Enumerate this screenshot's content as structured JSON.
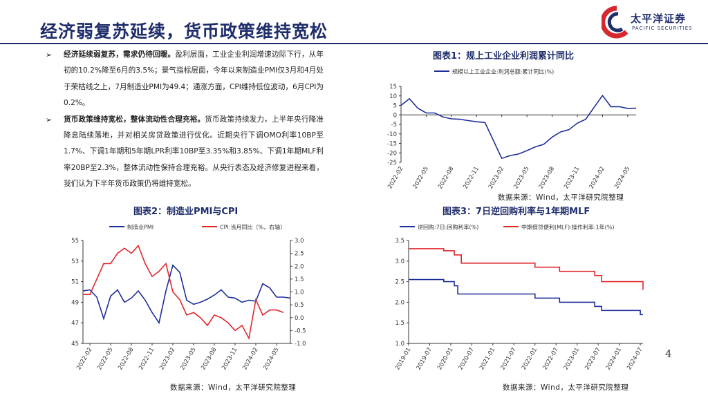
{
  "page": {
    "title": "经济弱复苏延续，货币政策维持宽松",
    "page_number": "4"
  },
  "logo": {
    "name_cn": "太平洋证券",
    "name_en": "PACIFIC SECURITIES",
    "colors": {
      "navy": "#1f2d6b",
      "red": "#d7282f"
    }
  },
  "bullets": [
    {
      "marker": "➢",
      "heading": "经济延续弱复苏，需求仍待回暖。",
      "body": "盈利层面，工业企业利润增速边际下行，从年初的10.2%降至6月的3.5%；景气指标层面，今年以来制造业PMI仅3月和4月处于荣枯线之上，7月制造业PMI为49.4；通涨方面，CPI维持低位波动，6月CPI为0.2%。"
    },
    {
      "marker": "➢",
      "heading": "货币政策维持宽松，整体流动性合理充裕。",
      "body": "货币政策持续发力，上半年央行降准降息陆续落地，并对相关房贷政策进行优化。近期央行下调OMO利率10BP至1.7%、下调1年期和5年期LPR利率10BP至3.35%和3.85%、下调1年期MLF利率20BP至2.3%，整体流动性保持合理充裕。从央行表态及经济修复进程来看，我们认为下半年货币政策仍将维持宽松。"
    }
  ],
  "charts": {
    "c1": {
      "title": "图表1：规上工业企业利润累计同比",
      "source": "数据来源：Wind，太平洋研究院整理"
    },
    "c2": {
      "title": "图表2：制造业PMI与CPI",
      "source": "数据来源：Wind，太平洋研究院整理"
    },
    "c3": {
      "title": "图表3：7日逆回购利率与1年期MLF",
      "source": "数据来源：Wind，太平洋研究院整理"
    }
  },
  "chart_data": [
    {
      "type": "line",
      "title": "图表1：规上工业企业利润累计同比",
      "x_ticks": [
        "2022-02",
        "2022-05",
        "2022-08",
        "2022-11",
        "2023-02",
        "2023-05",
        "2023-08",
        "2023-11",
        "2024-02",
        "2024-05"
      ],
      "ylim": [
        -25,
        15
      ],
      "y_ticks": [
        -25,
        -20,
        -15,
        -10,
        -5,
        0,
        5,
        10,
        15
      ],
      "legend_position": "top",
      "series": [
        {
          "name": "规模以上工业企业:利润总额:累计同比(%)",
          "color": "#1f2d9b",
          "x": [
            "2022-02",
            "2022-03",
            "2022-04",
            "2022-05",
            "2022-06",
            "2022-07",
            "2022-08",
            "2022-09",
            "2022-10",
            "2022-11",
            "2022-12",
            "2023-02",
            "2023-03",
            "2023-04",
            "2023-05",
            "2023-06",
            "2023-07",
            "2023-08",
            "2023-09",
            "2023-10",
            "2023-11",
            "2023-12",
            "2024-02",
            "2024-03",
            "2024-04",
            "2024-05",
            "2024-06"
          ],
          "values": [
            5.0,
            8.5,
            3.5,
            1.0,
            1.0,
            -1.1,
            -2.1,
            -2.3,
            -3.0,
            -3.6,
            -4.0,
            -22.9,
            -21.4,
            -20.6,
            -18.8,
            -16.8,
            -15.5,
            -11.7,
            -9.0,
            -7.8,
            -4.4,
            -2.3,
            10.2,
            4.3,
            4.3,
            3.4,
            3.5
          ]
        }
      ]
    },
    {
      "type": "line",
      "title": "图表2：制造业PMI与CPI",
      "x_ticks": [
        "2022-02",
        "2022-05",
        "2022-08",
        "2022-11",
        "2023-02",
        "2023-05",
        "2023-08",
        "2023-11",
        "2024-02",
        "2024-05"
      ],
      "ylim_left": [
        45,
        55
      ],
      "y_ticks_left": [
        45,
        47,
        49,
        51,
        53,
        55
      ],
      "ylim_right": [
        -1.0,
        3.0
      ],
      "y_ticks_right": [
        "-1.0",
        "-0.5",
        "0.0",
        "0.5",
        "1.0",
        "1.5",
        "2.0",
        "2.5",
        "3.0"
      ],
      "legend_position": "top",
      "series": [
        {
          "name": "制造业PMI",
          "axis": "left",
          "color": "#1f2d9b",
          "x": [
            "2022-01",
            "2022-02",
            "2022-03",
            "2022-04",
            "2022-05",
            "2022-06",
            "2022-07",
            "2022-08",
            "2022-09",
            "2022-10",
            "2022-11",
            "2022-12",
            "2023-01",
            "2023-02",
            "2023-03",
            "2023-04",
            "2023-05",
            "2023-06",
            "2023-07",
            "2023-08",
            "2023-09",
            "2023-10",
            "2023-11",
            "2023-12",
            "2024-01",
            "2024-02",
            "2024-03",
            "2024-04",
            "2024-05",
            "2024-06",
            "2024-07"
          ],
          "values": [
            50.1,
            50.2,
            49.5,
            47.4,
            49.6,
            50.2,
            49.0,
            49.4,
            50.1,
            49.2,
            48.0,
            47.0,
            50.1,
            52.6,
            51.9,
            49.2,
            48.8,
            49.0,
            49.3,
            49.7,
            50.2,
            49.5,
            49.4,
            49.0,
            49.2,
            49.1,
            50.8,
            50.4,
            49.5,
            49.5,
            49.4
          ]
        },
        {
          "name": "CPI:当月同比（%，右轴）",
          "axis": "right",
          "color": "#e1262c",
          "x": [
            "2022-01",
            "2022-02",
            "2022-03",
            "2022-04",
            "2022-05",
            "2022-06",
            "2022-07",
            "2022-08",
            "2022-09",
            "2022-10",
            "2022-11",
            "2022-12",
            "2023-01",
            "2023-02",
            "2023-03",
            "2023-04",
            "2023-05",
            "2023-06",
            "2023-07",
            "2023-08",
            "2023-09",
            "2023-10",
            "2023-11",
            "2023-12",
            "2024-01",
            "2024-02",
            "2024-03",
            "2024-04",
            "2024-05",
            "2024-06"
          ],
          "values": [
            0.9,
            0.9,
            1.5,
            2.1,
            2.1,
            2.5,
            2.7,
            2.5,
            2.8,
            2.1,
            1.6,
            1.8,
            2.1,
            1.0,
            0.7,
            0.1,
            0.2,
            0.0,
            -0.3,
            0.1,
            0.0,
            -0.2,
            -0.5,
            -0.3,
            -0.8,
            0.7,
            0.1,
            0.3,
            0.3,
            0.2
          ]
        }
      ]
    },
    {
      "type": "line",
      "title": "图表3：7日逆回购利率与1年期MLF",
      "x_ticks": [
        "2019-01",
        "2019-07",
        "2020-01",
        "2020-07",
        "2021-01",
        "2021-07",
        "2022-01",
        "2022-07",
        "2023-01",
        "2023-07",
        "2024-01",
        "2024-07"
      ],
      "ylim": [
        1.0,
        3.5
      ],
      "y_ticks": [
        "1.0",
        "1.5",
        "2.0",
        "2.5",
        "3.0",
        "3.5"
      ],
      "legend_position": "top",
      "series": [
        {
          "name": "逆回购:7日:回购利率(%)",
          "color": "#1f2d9b",
          "x": [
            "2019-01",
            "2019-11",
            "2020-02",
            "2020-03",
            "2020-04",
            "2022-01",
            "2022-08",
            "2023-06",
            "2023-08",
            "2024-07",
            "2024-07-25"
          ],
          "values": [
            2.55,
            2.5,
            2.4,
            2.2,
            2.2,
            2.1,
            2.0,
            1.9,
            1.8,
            1.7,
            1.7
          ]
        },
        {
          "name": "中期借贷便利(MLF):操作利率:1年(%)",
          "color": "#e1262c",
          "x": [
            "2019-01",
            "2019-11",
            "2020-02",
            "2020-04",
            "2022-01",
            "2022-08",
            "2023-06",
            "2023-08",
            "2024-07",
            "2024-07-25"
          ],
          "values": [
            3.3,
            3.25,
            3.15,
            2.95,
            2.85,
            2.75,
            2.65,
            2.5,
            2.5,
            2.3
          ]
        }
      ]
    }
  ]
}
